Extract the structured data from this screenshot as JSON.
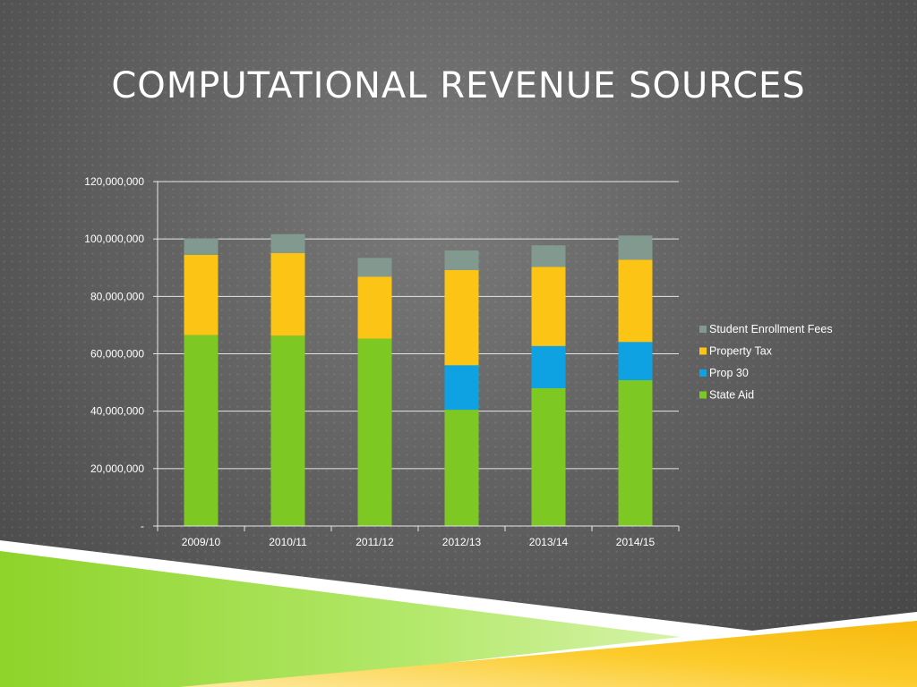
{
  "slide": {
    "title": "COMPUTATIONAL REVENUE SOURCES"
  },
  "colors": {
    "background": "#606060",
    "text": "#ffffff",
    "state_aid": "#7ec823",
    "prop_30": "#0ea2e2",
    "property_tax": "#fcc414",
    "student_enrollment_fees": "#829990"
  },
  "chart_data": {
    "type": "bar",
    "stacked": true,
    "title": "",
    "xlabel": "",
    "ylabel": "",
    "categories": [
      "2009/10",
      "2010/11",
      "2011/12",
      "2012/13",
      "2013/14",
      "2014/15"
    ],
    "series": [
      {
        "name": "State Aid",
        "color": "#7ec823",
        "values": [
          66500000,
          66300000,
          65300000,
          40500000,
          48000000,
          50800000
        ]
      },
      {
        "name": "Prop 30",
        "color": "#0ea2e2",
        "values": [
          0,
          0,
          0,
          15500000,
          14700000,
          13300000
        ]
      },
      {
        "name": "Property Tax",
        "color": "#fcc414",
        "values": [
          28000000,
          28800000,
          21600000,
          33200000,
          27600000,
          28700000
        ]
      },
      {
        "name": "Student Enrollment Fees",
        "color": "#829990",
        "values": [
          5700000,
          6600000,
          6500000,
          6800000,
          7500000,
          8400000
        ]
      }
    ],
    "ylim": [
      0,
      120000000
    ],
    "yticks": [
      0,
      20000000,
      40000000,
      60000000,
      80000000,
      100000000,
      120000000
    ],
    "ytick_labels": [
      "-",
      "20,000,000",
      "40,000,000",
      "60,000,000",
      "80,000,000",
      "100,000,000",
      "120,000,000"
    ],
    "legend_order": [
      "Student Enrollment Fees",
      "Property Tax",
      "Prop 30",
      "State Aid"
    ],
    "legend_position": "right",
    "grid": true
  }
}
